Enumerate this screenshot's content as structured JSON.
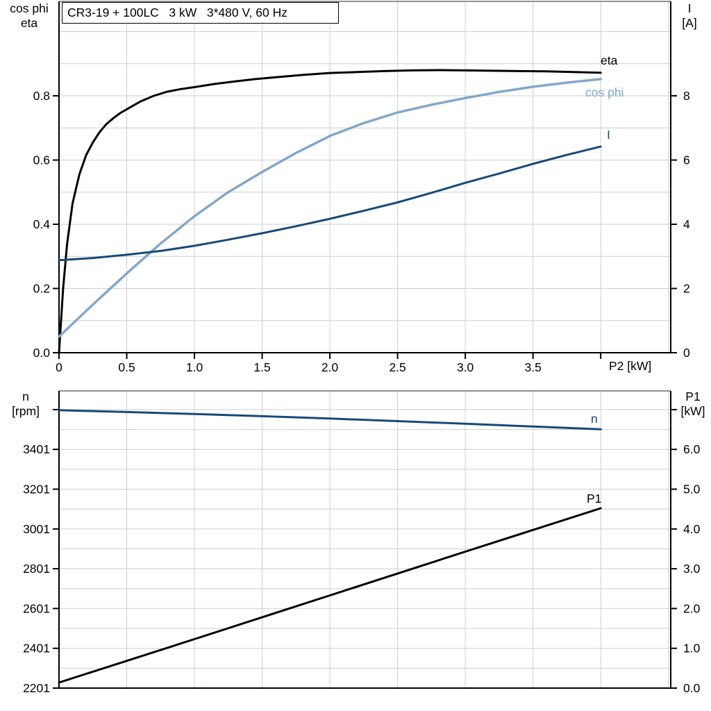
{
  "title_box": {
    "text": "CR3-19 + 100LC   3 kW   3*480 V, 60 Hz"
  },
  "palette": {
    "black": "#000000",
    "dark_blue": "#17497a",
    "light_blue": "#83a7ca",
    "grid": "#c9ced4",
    "frame": "#6d6d6d",
    "axis": "#000000"
  },
  "chart_data": [
    {
      "type": "line",
      "name": "motor-performance-top",
      "title": "CR3-19 + 100LC   3 kW   3*480 V, 60 Hz",
      "x_axis": {
        "label": "P2 [kW]",
        "range": [
          0,
          4.517
        ],
        "ticks": [
          {
            "v": 0,
            "t": "0"
          },
          {
            "v": 0.5,
            "t": "0.5"
          },
          {
            "v": 1,
            "t": "1.0"
          },
          {
            "v": 1.5,
            "t": "1.5"
          },
          {
            "v": 2,
            "t": "2.0"
          },
          {
            "v": 2.5,
            "t": "2.5"
          },
          {
            "v": 3,
            "t": "3.0"
          },
          {
            "v": 3.5,
            "t": "3.5"
          },
          {
            "v": 4,
            "t": ""
          }
        ],
        "gridlines": [
          0.5,
          1,
          1.5,
          2,
          2.5,
          3,
          3.5,
          4,
          4.5
        ]
      },
      "y_left": {
        "label_lines": [
          "cos phi",
          "eta"
        ],
        "range": [
          0,
          1.094
        ],
        "ticks": [
          {
            "v": 0,
            "t": "0.0"
          },
          {
            "v": 0.2,
            "t": "0.2"
          },
          {
            "v": 0.4,
            "t": "0.4"
          },
          {
            "v": 0.6,
            "t": "0.6"
          },
          {
            "v": 0.8,
            "t": "0.8"
          }
        ],
        "gridlines": [
          0.1,
          0.2,
          0.3,
          0.4,
          0.5,
          0.6,
          0.7,
          0.8,
          0.9,
          1.0
        ]
      },
      "y_right": {
        "label_lines": [
          "I",
          "[A]"
        ],
        "range": [
          0,
          10.94
        ],
        "ticks": [
          {
            "v": 0,
            "t": "0"
          },
          {
            "v": 2,
            "t": "2"
          },
          {
            "v": 4,
            "t": "4"
          },
          {
            "v": 6,
            "t": "6"
          },
          {
            "v": 8,
            "t": "8"
          }
        ]
      },
      "series": [
        {
          "name": "eta",
          "axis": "left",
          "color": "black",
          "width": 3,
          "points": [
            [
              0,
              0
            ],
            [
              0.03,
              0.2
            ],
            [
              0.06,
              0.34
            ],
            [
              0.1,
              0.465
            ],
            [
              0.15,
              0.555
            ],
            [
              0.2,
              0.615
            ],
            [
              0.25,
              0.655
            ],
            [
              0.3,
              0.687
            ],
            [
              0.35,
              0.712
            ],
            [
              0.4,
              0.73
            ],
            [
              0.45,
              0.746
            ],
            [
              0.5,
              0.758
            ],
            [
              0.6,
              0.782
            ],
            [
              0.7,
              0.8
            ],
            [
              0.8,
              0.813
            ],
            [
              0.9,
              0.821
            ],
            [
              1,
              0.827
            ],
            [
              1.15,
              0.837
            ],
            [
              1.3,
              0.845
            ],
            [
              1.45,
              0.852
            ],
            [
              1.6,
              0.858
            ],
            [
              1.8,
              0.865
            ],
            [
              2,
              0.871
            ],
            [
              2.2,
              0.874
            ],
            [
              2.4,
              0.877
            ],
            [
              2.6,
              0.879
            ],
            [
              2.8,
              0.88
            ],
            [
              3,
              0.879
            ],
            [
              3.2,
              0.878
            ],
            [
              3.4,
              0.877
            ],
            [
              3.6,
              0.876
            ],
            [
              3.8,
              0.874
            ],
            [
              4,
              0.872
            ]
          ]
        },
        {
          "name": "cos phi",
          "axis": "left",
          "color": "light_blue",
          "width": 3.5,
          "points": [
            [
              0,
              0.05
            ],
            [
              0.25,
              0.15
            ],
            [
              0.5,
              0.247
            ],
            [
              0.75,
              0.34
            ],
            [
              1,
              0.425
            ],
            [
              1.25,
              0.5
            ],
            [
              1.5,
              0.563
            ],
            [
              1.75,
              0.622
            ],
            [
              2,
              0.675
            ],
            [
              2.25,
              0.715
            ],
            [
              2.5,
              0.748
            ],
            [
              2.75,
              0.772
            ],
            [
              3,
              0.793
            ],
            [
              3.25,
              0.812
            ],
            [
              3.5,
              0.828
            ],
            [
              3.75,
              0.841
            ],
            [
              4,
              0.852
            ]
          ]
        },
        {
          "name": "I",
          "axis": "right",
          "color": "dark_blue",
          "width": 3,
          "points": [
            [
              0,
              2.88
            ],
            [
              0.25,
              2.95
            ],
            [
              0.5,
              3.05
            ],
            [
              0.75,
              3.17
            ],
            [
              1,
              3.33
            ],
            [
              1.25,
              3.52
            ],
            [
              1.5,
              3.72
            ],
            [
              1.75,
              3.94
            ],
            [
              2,
              4.17
            ],
            [
              2.25,
              4.42
            ],
            [
              2.5,
              4.68
            ],
            [
              2.75,
              4.98
            ],
            [
              3,
              5.29
            ],
            [
              3.25,
              5.58
            ],
            [
              3.5,
              5.88
            ],
            [
              3.75,
              6.16
            ],
            [
              4,
              6.42
            ]
          ]
        }
      ]
    },
    {
      "type": "line",
      "name": "motor-performance-bottom",
      "x_axis": {
        "label": "",
        "range": [
          0,
          4.517
        ],
        "ticks": [],
        "gridlines": [
          0.5,
          1,
          1.5,
          2,
          2.5,
          3,
          3.5,
          4,
          4.5
        ]
      },
      "y_left": {
        "label_lines": [
          "n",
          "[rpm]"
        ],
        "range": [
          2201,
          3695
        ],
        "ticks": [
          {
            "v": 2201,
            "t": "2201"
          },
          {
            "v": 2401,
            "t": "2401"
          },
          {
            "v": 2601,
            "t": "2601"
          },
          {
            "v": 2801,
            "t": "2801"
          },
          {
            "v": 3001,
            "t": "3001"
          },
          {
            "v": 3201,
            "t": "3201"
          },
          {
            "v": 3401,
            "t": "3401"
          },
          {
            "v": 3601,
            "t": ""
          }
        ],
        "gridlines": [
          2301,
          2401,
          2501,
          2601,
          2701,
          2801,
          2901,
          3001,
          3101,
          3201,
          3301,
          3401,
          3501,
          3601
        ]
      },
      "y_right": {
        "label_lines": [
          "P1",
          "[kW]"
        ],
        "range": [
          0,
          7.47
        ],
        "ticks": [
          {
            "v": 0,
            "t": "0.0"
          },
          {
            "v": 1,
            "t": "1.0"
          },
          {
            "v": 2,
            "t": "2.0"
          },
          {
            "v": 3,
            "t": "3.0"
          },
          {
            "v": 4,
            "t": "4.0"
          },
          {
            "v": 5,
            "t": "5.0"
          },
          {
            "v": 6,
            "t": "6.0"
          },
          {
            "v": 7,
            "t": ""
          }
        ]
      },
      "series": [
        {
          "name": "n",
          "axis": "left",
          "color": "dark_blue",
          "width": 3,
          "points": [
            [
              0,
              3598
            ],
            [
              0.5,
              3589
            ],
            [
              1,
              3579
            ],
            [
              1.5,
              3568
            ],
            [
              2,
              3556
            ],
            [
              2.5,
              3543
            ],
            [
              3,
              3530
            ],
            [
              3.5,
              3516
            ],
            [
              4,
              3502
            ]
          ]
        },
        {
          "name": "P1",
          "axis": "right",
          "color": "black",
          "width": 3,
          "points": [
            [
              0,
              0.14
            ],
            [
              1,
              1.23
            ],
            [
              2,
              2.33
            ],
            [
              3,
              3.43
            ],
            [
              4,
              4.52
            ]
          ]
        }
      ]
    }
  ],
  "curve_labels": [
    {
      "id": "eta",
      "text": "eta",
      "color": "black",
      "x": 865,
      "y": 77
    },
    {
      "id": "cos-phi",
      "text": "cos phi",
      "color": "light_blue",
      "x": 843,
      "y": 123
    },
    {
      "id": "i",
      "text": "I",
      "color": "dark_blue",
      "x": 874,
      "y": 184
    },
    {
      "id": "n",
      "text": "n",
      "color": "dark_blue",
      "x": 851,
      "y": 593
    },
    {
      "id": "p1",
      "text": "P1",
      "color": "black",
      "x": 845,
      "y": 708
    }
  ]
}
